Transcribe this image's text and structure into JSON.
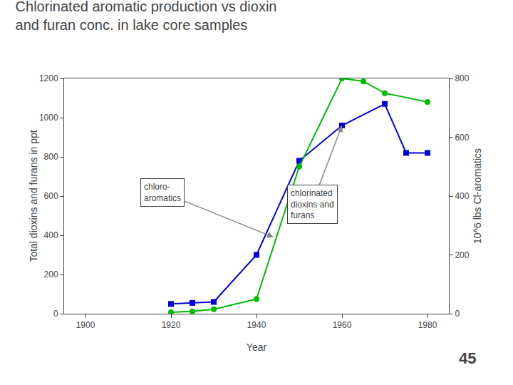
{
  "chart_data": {
    "type": "line",
    "title": "Chlorinated aromatic production vs dioxin\nand furan conc. in lake core samples",
    "xlabel": "Year",
    "ylabel": "Total dioxins and furans in ppt",
    "y2label": "10^6 lbs Cl-aromatics",
    "series": [
      {
        "color": "#0000dd",
        "marker": "square",
        "axis": "y",
        "x": [
          1920,
          1925,
          1930,
          1940,
          1950,
          1960,
          1970,
          1975,
          1980
        ],
        "values": [
          50,
          55,
          60,
          300,
          780,
          960,
          1070,
          820,
          820
        ]
      },
      {
        "color": "#00bb00",
        "marker": "circle",
        "axis": "y2",
        "x": [
          1920,
          1925,
          1930,
          1940,
          1950,
          1960,
          1965,
          1970,
          1980
        ],
        "values": [
          5,
          8,
          15,
          50,
          500,
          800,
          790,
          750,
          720
        ]
      }
    ],
    "xlim": [
      1895,
      1985
    ],
    "xticks": [
      1900,
      1920,
      1940,
      1960,
      1980
    ],
    "ylim": [
      0,
      1200
    ],
    "yticks": [
      0,
      200,
      400,
      600,
      800,
      1000,
      1200
    ],
    "y2lim": [
      0,
      800
    ],
    "y2ticks": [
      0,
      200,
      400,
      600,
      800
    ],
    "grid": false,
    "annotations": [
      {
        "text": "chloro-\naromatics",
        "x": 1944,
        "y": 390,
        "text_x": 1918,
        "text_y": 620
      },
      {
        "text": "chlorinated\ndioxins and\nfurans",
        "x": 1960,
        "y": 960,
        "text_x": 1953,
        "text_y": 560
      },
      {
        "text": "45"
      }
    ]
  }
}
